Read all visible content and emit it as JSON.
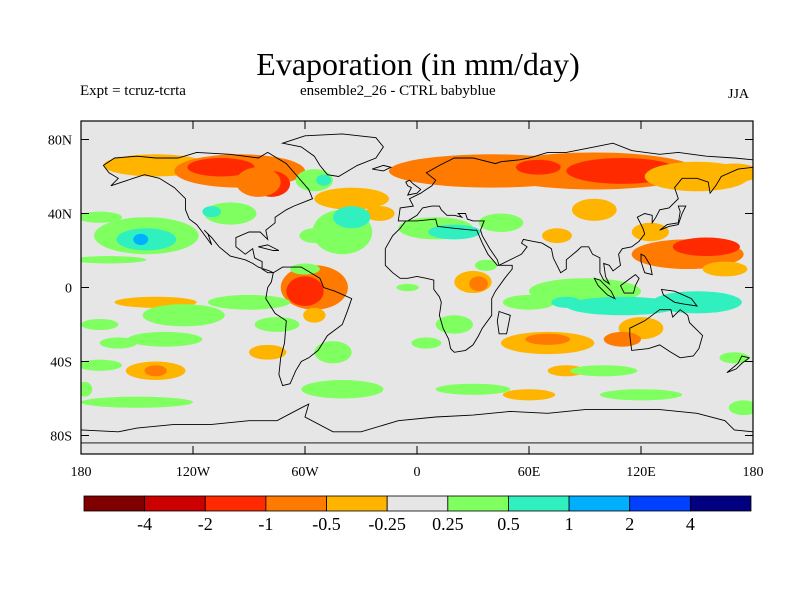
{
  "header": {
    "title": "Evaporation (in mm/day)",
    "left_label": "Expt = tcruz-tcrta",
    "center_label": "ensemble2_26 - CTRL babyblue",
    "season": "JJA"
  },
  "colors": {
    "background_land_ocean": "#e6e6e6",
    "coastline": "#000000",
    "palette": [
      "#800000",
      "#cc0000",
      "#ff2a00",
      "#ff7a00",
      "#ffb400",
      "#e6e6e6",
      "#80ff60",
      "#30f0c0",
      "#00b0ff",
      "#0040ff",
      "#000080"
    ]
  },
  "chart_data": {
    "type": "heatmap",
    "title": "Evaporation (in mm/day)",
    "projection": "cylindrical equidistant",
    "xlim": [
      -180,
      180
    ],
    "ylim": [
      -90,
      90
    ],
    "x_ticks": [
      {
        "value": -180,
        "label": "180"
      },
      {
        "value": -120,
        "label": "120W"
      },
      {
        "value": -60,
        "label": "60W"
      },
      {
        "value": 0,
        "label": "0"
      },
      {
        "value": 60,
        "label": "60E"
      },
      {
        "value": 120,
        "label": "120E"
      },
      {
        "value": 180,
        "label": "180"
      }
    ],
    "y_ticks": [
      {
        "value": 80,
        "label": "80N"
      },
      {
        "value": 40,
        "label": "40N"
      },
      {
        "value": 0,
        "label": "0"
      },
      {
        "value": -40,
        "label": "40S"
      },
      {
        "value": -80,
        "label": "80S"
      }
    ],
    "colorbar": {
      "levels": [
        -4,
        -2,
        -1,
        -0.5,
        -0.25,
        0.25,
        0.5,
        1,
        2,
        4
      ],
      "labels": [
        "-4",
        "-2",
        "-1",
        "-0.5",
        "-0.25",
        "0.25",
        "0.5",
        "1",
        "2",
        "4"
      ]
    },
    "regions": [
      {
        "lon": [
          -170,
          -100
        ],
        "lat": [
          72,
          60
        ],
        "band": "-1 to -0.5"
      },
      {
        "lon": [
          -130,
          -80
        ],
        "lat": [
          70,
          55
        ],
        "band": "-2 to -1"
      },
      {
        "lon": [
          -60,
          180
        ],
        "lat": [
          75,
          55
        ],
        "band": "-1 to -0.5"
      },
      {
        "lon": [
          90,
          130
        ],
        "lat": [
          70,
          55
        ],
        "band": "-2 to -1"
      },
      {
        "lon": [
          -75,
          -40
        ],
        "lat": [
          0,
          -15
        ],
        "band": "-1 to -0.5"
      },
      {
        "lon": [
          120,
          180
        ],
        "lat": [
          25,
          10
        ],
        "band": "-1 to -0.5"
      },
      {
        "lon": [
          -160,
          -120
        ],
        "lat": [
          35,
          10
        ],
        "band": "0.5 to 1"
      },
      {
        "lon": [
          -110,
          -80
        ],
        "lat": [
          45,
          35
        ],
        "band": "0.5 to 1"
      },
      {
        "lon": [
          -150,
          -60
        ],
        "lat": [
          20,
          -10
        ],
        "band": "0.25 to 0.5"
      },
      {
        "lon": [
          60,
          150
        ],
        "lat": [
          0,
          -20
        ],
        "band": "0.5 to 1"
      },
      {
        "lon": [
          30,
          90
        ],
        "lat": [
          -25,
          -40
        ],
        "band": "-0.5 to -0.25"
      },
      {
        "lon": [
          -150,
          -120
        ],
        "lat": [
          -40,
          -50
        ],
        "band": "-1 to -0.5"
      }
    ]
  }
}
